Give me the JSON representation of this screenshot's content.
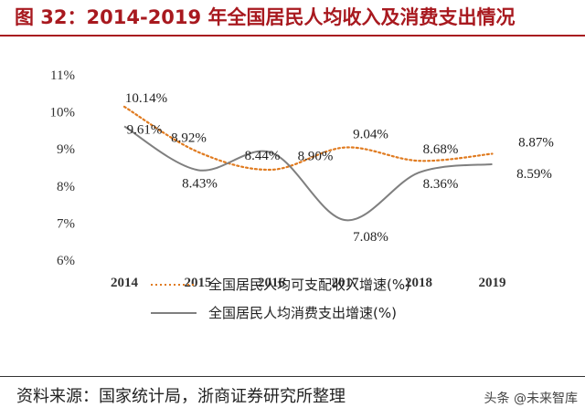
{
  "title": "图 32：2014-2019 年全国居民人均收入及消费支出情况",
  "source": "资料来源：国家统计局，浙商证券研究所整理",
  "watermark": "头条 @未来智库",
  "colors": {
    "accent": "#a8191f",
    "income": "#e07b20",
    "consumption": "#7f7f7f"
  },
  "chart_data": {
    "type": "line",
    "categories": [
      "2014",
      "2015",
      "2016",
      "2017",
      "2018",
      "2019"
    ],
    "y_ticks": [
      "6%",
      "7%",
      "8%",
      "9%",
      "10%",
      "11%"
    ],
    "ylim": [
      6,
      11
    ],
    "grid": false,
    "legend_position": "bottom",
    "series": [
      {
        "name": "全国居民人均可支配收入增速(%)",
        "style": "dotted",
        "color": "#e07b20",
        "values": [
          10.14,
          8.92,
          8.44,
          9.04,
          8.68,
          8.87
        ],
        "labels": [
          "10.14%",
          "8.92%",
          "8.44%",
          "9.04%",
          "8.68%",
          "8.87%"
        ]
      },
      {
        "name": "全国居民人均消费支出增速(%)",
        "style": "solid",
        "color": "#7f7f7f",
        "values": [
          9.61,
          8.43,
          8.9,
          7.08,
          8.36,
          8.59
        ],
        "labels": [
          "9.61%",
          "8.43%",
          "8.90%",
          "7.08%",
          "8.36%",
          "8.59%"
        ]
      }
    ]
  }
}
